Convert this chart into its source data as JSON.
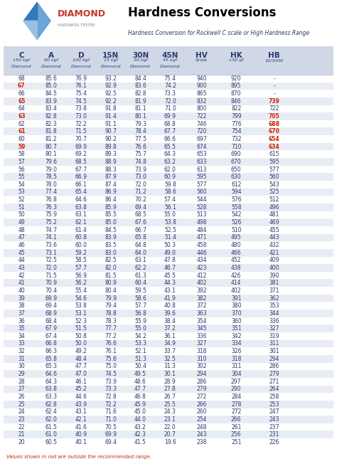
{
  "title": "Hardness Conversions",
  "subtitle": "Hardness Conversion for Rockwell C scale or High Hardness Range",
  "col_headers": [
    "C",
    "A",
    "D",
    "15N",
    "30N",
    "45N",
    "HV",
    "HK",
    "HB"
  ],
  "col_sub1": [
    "150 kgf",
    "60 kgf",
    "100 kgf",
    "15 kgf",
    "30 kgf",
    "45 kgf",
    "Scale",
    ">50 gf",
    "10/3000"
  ],
  "col_sub2": [
    "Diamond",
    "Diamond",
    "Diamond",
    "Diamond",
    "Diamond",
    "Diamond",
    "",
    "",
    ""
  ],
  "rows": [
    [
      68,
      85.6,
      76.9,
      93.2,
      84.4,
      75.4,
      940,
      920,
      "-"
    ],
    [
      67,
      85.0,
      76.1,
      92.9,
      83.6,
      74.2,
      900,
      895,
      "-"
    ],
    [
      66,
      84.5,
      75.4,
      92.5,
      82.8,
      73.3,
      865,
      870,
      "-"
    ],
    [
      65,
      83.9,
      74.5,
      92.2,
      81.9,
      72.0,
      832,
      846,
      "739"
    ],
    [
      64,
      83.4,
      73.8,
      91.8,
      81.1,
      71.0,
      800,
      822,
      "722"
    ],
    [
      63,
      82.8,
      73.0,
      91.4,
      80.1,
      69.9,
      722,
      799,
      "705"
    ],
    [
      62,
      82.3,
      72.2,
      91.1,
      79.3,
      68.8,
      746,
      776,
      "688"
    ],
    [
      61,
      81.8,
      71.5,
      90.7,
      78.4,
      67.7,
      720,
      754,
      "670"
    ],
    [
      60,
      81.2,
      70.7,
      90.2,
      77.5,
      66.6,
      697,
      732,
      "654"
    ],
    [
      59,
      80.7,
      69.9,
      89.8,
      76.6,
      65.5,
      674,
      710,
      "634"
    ],
    [
      58,
      80.1,
      69.2,
      89.3,
      75.7,
      64.3,
      653,
      690,
      "615"
    ],
    [
      57,
      79.6,
      68.5,
      88.9,
      74.8,
      63.2,
      633,
      670,
      "595"
    ],
    [
      56,
      79.0,
      67.7,
      88.3,
      73.9,
      62.0,
      613,
      650,
      "577"
    ],
    [
      55,
      78.5,
      66.9,
      87.9,
      73.0,
      60.9,
      595,
      630,
      "560"
    ],
    [
      54,
      78.0,
      66.1,
      87.4,
      72.0,
      59.8,
      577,
      612,
      "543"
    ],
    [
      53,
      77.4,
      65.4,
      86.9,
      71.2,
      58.6,
      560,
      594,
      "525"
    ],
    [
      52,
      76.8,
      64.6,
      86.4,
      70.2,
      57.4,
      544,
      576,
      "512"
    ],
    [
      51,
      76.3,
      63.8,
      85.9,
      69.4,
      56.1,
      528,
      558,
      "496"
    ],
    [
      50,
      75.9,
      63.1,
      85.5,
      68.5,
      55.0,
      513,
      542,
      "481"
    ],
    [
      49,
      75.2,
      62.1,
      85.0,
      67.6,
      53.8,
      498,
      526,
      "469"
    ],
    [
      48,
      74.7,
      61.4,
      84.5,
      66.7,
      52.5,
      484,
      510,
      "455"
    ],
    [
      47,
      74.1,
      60.8,
      83.9,
      65.8,
      51.4,
      471,
      495,
      "443"
    ],
    [
      46,
      73.6,
      60.0,
      83.5,
      64.8,
      50.3,
      458,
      480,
      "432"
    ],
    [
      45,
      73.1,
      59.2,
      83.0,
      64.0,
      49.0,
      446,
      466,
      "421"
    ],
    [
      44,
      72.5,
      58.5,
      82.5,
      63.1,
      47.8,
      434,
      452,
      "409"
    ],
    [
      43,
      72.0,
      57.7,
      82.0,
      62.2,
      46.7,
      423,
      438,
      "400"
    ],
    [
      42,
      71.5,
      56.9,
      81.5,
      61.3,
      45.5,
      412,
      426,
      "390"
    ],
    [
      41,
      70.9,
      56.2,
      80.9,
      60.4,
      44.3,
      402,
      414,
      "381"
    ],
    [
      40,
      70.4,
      55.4,
      80.4,
      59.5,
      43.1,
      392,
      402,
      "371"
    ],
    [
      39,
      69.9,
      54.6,
      79.9,
      58.6,
      41.9,
      382,
      391,
      "362"
    ],
    [
      38,
      69.4,
      53.8,
      79.4,
      57.7,
      40.8,
      372,
      380,
      "353"
    ],
    [
      37,
      68.9,
      53.1,
      78.8,
      56.8,
      39.6,
      363,
      370,
      "344"
    ],
    [
      36,
      68.4,
      52.3,
      78.3,
      55.9,
      38.4,
      354,
      360,
      "336"
    ],
    [
      35,
      67.9,
      51.5,
      77.7,
      55.0,
      37.2,
      345,
      351,
      "327"
    ],
    [
      34,
      67.4,
      50.8,
      77.2,
      54.2,
      36.1,
      336,
      342,
      "319"
    ],
    [
      33,
      66.8,
      50.0,
      76.6,
      53.3,
      34.9,
      327,
      334,
      "311"
    ],
    [
      32,
      66.3,
      49.2,
      76.1,
      52.1,
      33.7,
      318,
      326,
      "301"
    ],
    [
      31,
      65.8,
      48.4,
      75.6,
      51.3,
      32.5,
      310,
      318,
      "294"
    ],
    [
      30,
      65.3,
      47.7,
      75.0,
      50.4,
      31.3,
      302,
      311,
      "286"
    ],
    [
      29,
      64.6,
      47.0,
      74.5,
      49.5,
      30.1,
      294,
      304,
      "279"
    ],
    [
      28,
      64.3,
      46.1,
      73.9,
      48.6,
      28.9,
      286,
      297,
      "271"
    ],
    [
      27,
      63.8,
      45.2,
      73.3,
      47.7,
      27.8,
      279,
      290,
      "264"
    ],
    [
      26,
      63.3,
      44.6,
      72.8,
      46.8,
      26.7,
      272,
      284,
      "258"
    ],
    [
      25,
      62.8,
      43.9,
      72.2,
      45.9,
      25.5,
      266,
      278,
      "253"
    ],
    [
      24,
      62.4,
      43.1,
      71.6,
      45.0,
      24.3,
      260,
      272,
      "247"
    ],
    [
      23,
      62.0,
      42.1,
      71.0,
      44.0,
      23.1,
      254,
      266,
      "243"
    ],
    [
      22,
      61.5,
      41.6,
      70.5,
      43.2,
      22.0,
      248,
      261,
      "237"
    ],
    [
      21,
      61.0,
      40.9,
      69.9,
      42.3,
      20.7,
      243,
      256,
      "231"
    ],
    [
      20,
      60.5,
      40.1,
      69.4,
      41.5,
      19.6,
      238,
      251,
      "226"
    ]
  ],
  "red_rows": [
    67,
    65,
    63,
    61,
    59
  ],
  "highlight_rows_light": [
    67,
    65,
    63,
    61,
    59,
    57,
    55,
    53,
    51,
    49,
    47,
    45,
    43,
    41,
    39,
    37,
    35,
    33,
    31,
    29,
    27,
    25,
    23,
    21
  ],
  "red_hb_rows": [
    65,
    63,
    62,
    61,
    60,
    59
  ],
  "header_bg": "#d0d8e8",
  "row_alt_bg": "#e8ecf4",
  "row_bg": "#ffffff",
  "text_color_dark": "#2b3a6b",
  "text_color_red": "#cc2200",
  "footer_text": "Values shown in red are outside the recommended range."
}
